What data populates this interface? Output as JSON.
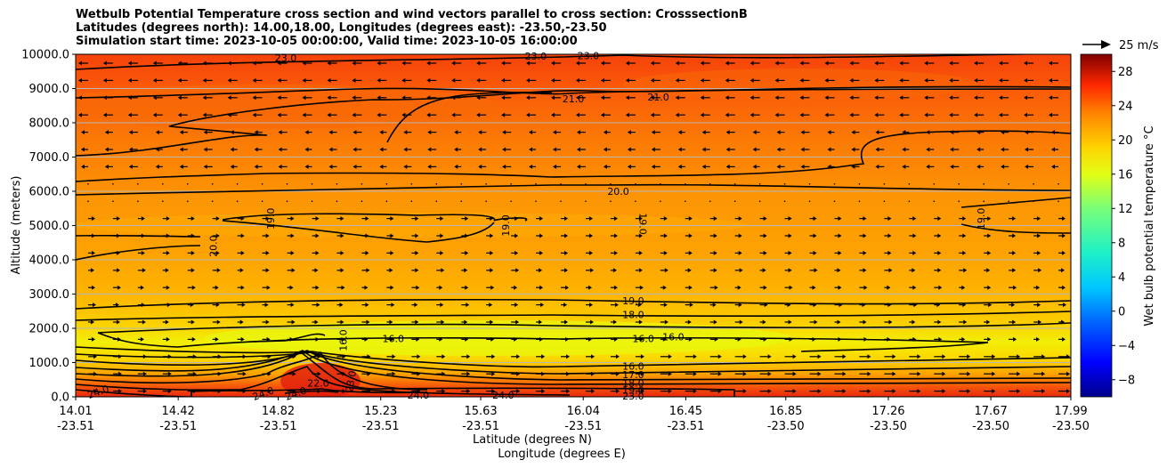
{
  "title": {
    "line1": "Wetbulb Potential Temperature cross section and wind vectors parallel to cross section: CrosssectionB",
    "line2": "Latitudes (degrees north): 14.00,18.00, Longitudes (degrees east): -23.50,-23.50",
    "line3": "Simulation start time: 2023-10-05 00:00:00, Valid time: 2023-10-05 16:00:00"
  },
  "chart_data": {
    "type": "heatmap",
    "ylabel": "Altitude (meters)",
    "xlabel_lat": "Latitude (degrees N)",
    "xlabel_lon": "Longitude (degrees E)",
    "ylim": [
      0,
      10000
    ],
    "y_ticks": [
      "0.0",
      "1000.0",
      "2000.0",
      "3000.0",
      "4000.0",
      "5000.0",
      "6000.0",
      "7000.0",
      "8000.0",
      "9000.0",
      "10000.0"
    ],
    "x_ticks": [
      {
        "lat": "14.01",
        "lon": "-23.51"
      },
      {
        "lat": "14.42",
        "lon": "-23.51"
      },
      {
        "lat": "14.82",
        "lon": "-23.51"
      },
      {
        "lat": "15.23",
        "lon": "-23.51"
      },
      {
        "lat": "15.63",
        "lon": "-23.51"
      },
      {
        "lat": "16.04",
        "lon": "-23.51"
      },
      {
        "lat": "16.45",
        "lon": "-23.51"
      },
      {
        "lat": "16.85",
        "lon": "-23.50"
      },
      {
        "lat": "17.26",
        "lon": "-23.50"
      },
      {
        "lat": "17.67",
        "lon": "-23.50"
      },
      {
        "lat": "17.99",
        "lon": "-23.50"
      }
    ],
    "grid": "horizontal",
    "colorbar": {
      "label": "Wet bulb potential temperature °C",
      "ticks": [
        "−8",
        "−4",
        "0",
        "4",
        "8",
        "12",
        "16",
        "20",
        "24",
        "28"
      ],
      "range": [
        -10,
        30
      ]
    },
    "quiver_key": {
      "label": "25 m/s"
    },
    "contour_labels": [
      {
        "text": "23.0",
        "x": 14.85,
        "y": 9900,
        "rot": 0
      },
      {
        "text": "23.0",
        "x": 15.85,
        "y": 9950,
        "rot": 0
      },
      {
        "text": "23.0",
        "x": 16.06,
        "y": 9960,
        "rot": 0
      },
      {
        "text": "21.0",
        "x": 16.0,
        "y": 8700,
        "rot": 0
      },
      {
        "text": "21.0",
        "x": 16.34,
        "y": 8750,
        "rot": 0
      },
      {
        "text": "20.0",
        "x": 16.18,
        "y": 6000,
        "rot": 0
      },
      {
        "text": "19.0",
        "x": 14.79,
        "y": 5200,
        "rot": -90
      },
      {
        "text": "19.0",
        "x": 15.73,
        "y": 5000,
        "rot": -90
      },
      {
        "text": "19.0",
        "x": 16.28,
        "y": 5050,
        "rot": 90
      },
      {
        "text": "19.0",
        "x": 17.63,
        "y": 5200,
        "rot": -90
      },
      {
        "text": "20.0",
        "x": 14.56,
        "y": 4400,
        "rot": -90
      },
      {
        "text": "19.0",
        "x": 16.24,
        "y": 2800,
        "rot": 0
      },
      {
        "text": "18.0",
        "x": 16.24,
        "y": 2400,
        "rot": 0
      },
      {
        "text": "16.0",
        "x": 15.28,
        "y": 1700,
        "rot": 0
      },
      {
        "text": "16.0",
        "x": 16.28,
        "y": 1700,
        "rot": 0
      },
      {
        "text": "16.0",
        "x": 16.4,
        "y": 1750,
        "rot": 0
      },
      {
        "text": "16.0",
        "x": 16.24,
        "y": 900,
        "rot": 0
      },
      {
        "text": "17.0",
        "x": 16.24,
        "y": 650,
        "rot": 0
      },
      {
        "text": "18.0",
        "x": 16.24,
        "y": 400,
        "rot": 0
      },
      {
        "text": "19.0",
        "x": 16.24,
        "y": 200,
        "rot": 0
      },
      {
        "text": "23.0",
        "x": 16.24,
        "y": 20,
        "rot": 0
      },
      {
        "text": "22.0",
        "x": 14.98,
        "y": 400,
        "rot": 0
      },
      {
        "text": "24.0",
        "x": 14.1,
        "y": 150,
        "rot": -20
      },
      {
        "text": "24.0",
        "x": 14.76,
        "y": 100,
        "rot": -20
      },
      {
        "text": "24.0",
        "x": 14.89,
        "y": 100,
        "rot": -20
      },
      {
        "text": "24.0",
        "x": 15.38,
        "y": 50,
        "rot": 0
      },
      {
        "text": "24.0",
        "x": 15.72,
        "y": 50,
        "rot": 0
      },
      {
        "text": "16.0",
        "x": 15.08,
        "y": 1650,
        "rot": -90
      },
      {
        "text": "23.0",
        "x": 15.11,
        "y": 450,
        "rot": -80
      }
    ]
  }
}
